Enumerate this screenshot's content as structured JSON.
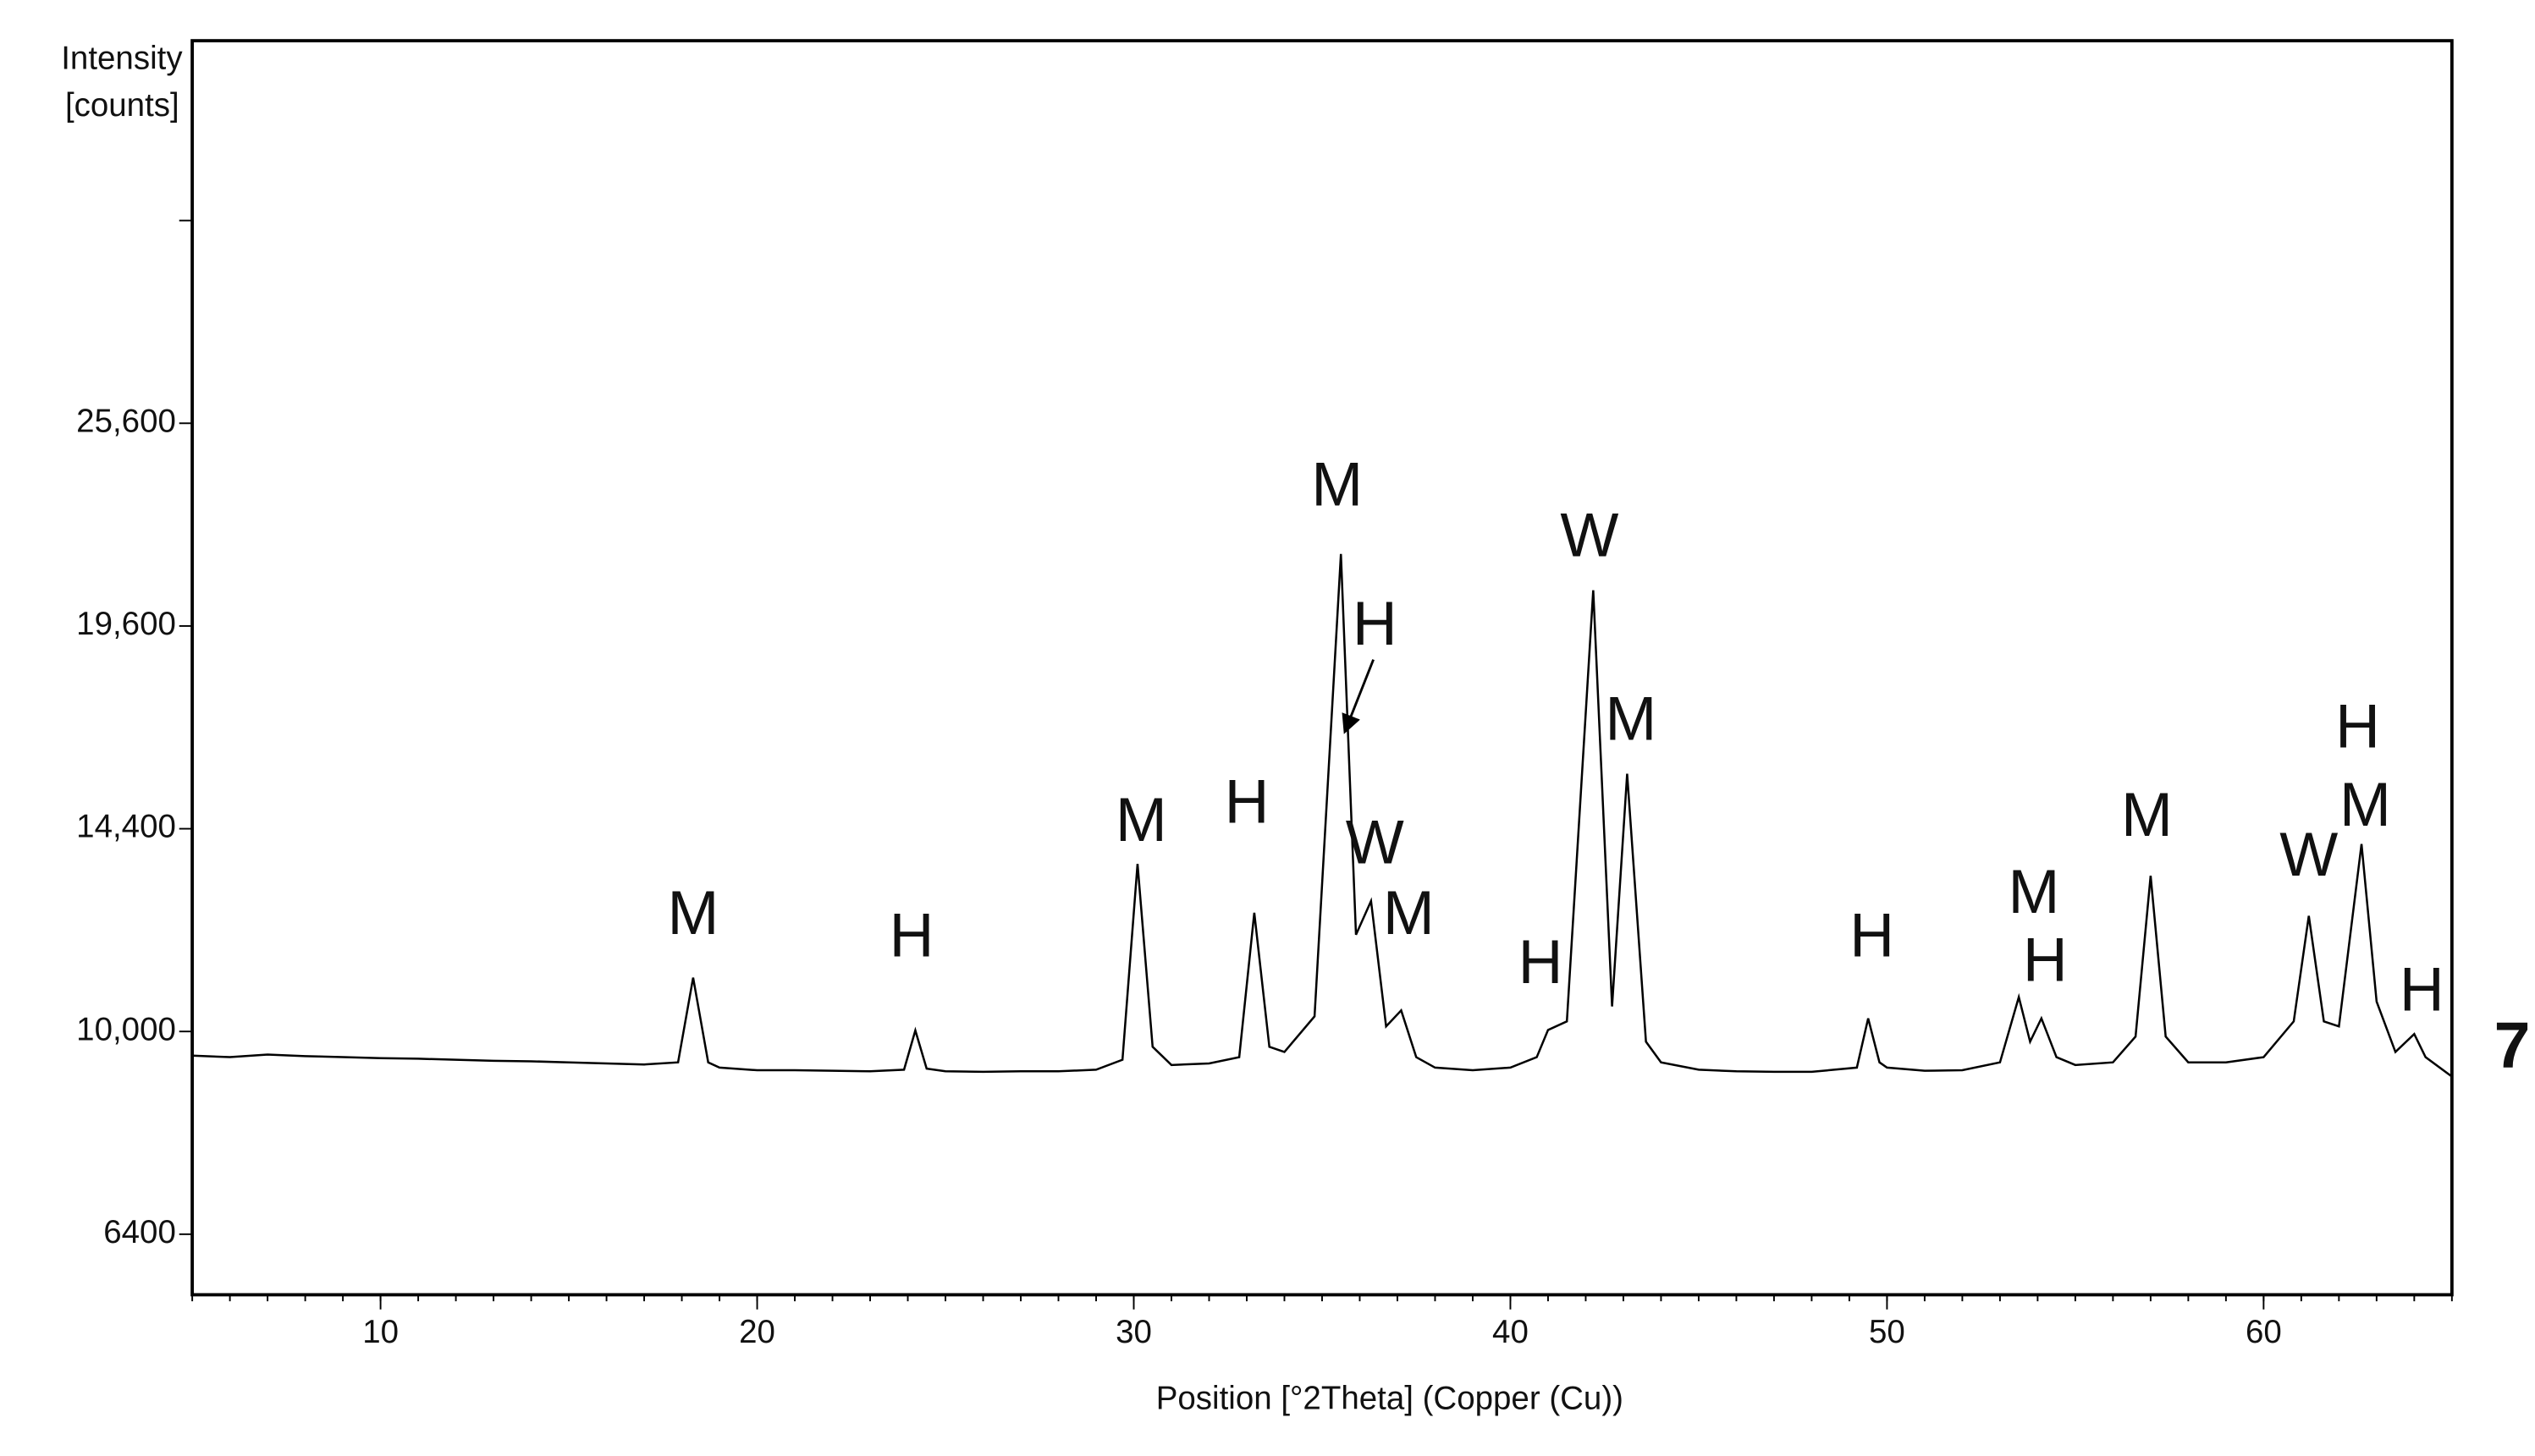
{
  "chart_data": {
    "type": "line",
    "y_label": [
      "Intensity",
      "[counts]"
    ],
    "x_label": "Position [°2Theta] (Copper (Cu))",
    "panel_label": "7",
    "y_scale": "sqrt",
    "xlim": [
      5,
      65
    ],
    "xticks": [
      10,
      20,
      30,
      40,
      50,
      60
    ],
    "x_minor_step": 1,
    "ylim": [
      5480,
      39100
    ],
    "yticks": [
      {
        "value": 6400,
        "label": "6400"
      },
      {
        "value": 10000,
        "label": "10,000"
      },
      {
        "value": 14400,
        "label": "14,400"
      },
      {
        "value": 19600,
        "label": "19,600"
      },
      {
        "value": 25600,
        "label": "25,600"
      },
      {
        "value": 32400,
        "label": null
      }
    ],
    "series": [
      {
        "color": "#000000",
        "x": [
          5,
          6,
          7,
          8,
          9,
          10,
          11,
          12,
          13,
          14,
          15,
          16,
          17,
          17.9,
          18.3,
          18.7,
          19,
          20,
          21,
          22,
          23,
          23.9,
          24.2,
          24.5,
          25,
          26,
          27,
          28,
          29,
          29.7,
          30.1,
          30.5,
          31,
          32,
          32.8,
          33.2,
          33.6,
          34,
          34.8,
          35.5,
          35.9,
          36.3,
          36.7,
          37.1,
          37.5,
          38,
          39,
          40,
          40.7,
          41,
          41.5,
          42.2,
          42.7,
          43.1,
          43.6,
          44,
          45,
          46,
          47,
          48,
          49.2,
          49.5,
          49.8,
          50,
          51,
          52,
          53,
          53.5,
          53.8,
          54.1,
          54.5,
          55,
          56,
          56.6,
          57,
          57.4,
          58,
          59,
          60,
          60.8,
          61.2,
          61.6,
          62,
          62.6,
          63,
          63.5,
          64,
          64.3,
          65
        ],
        "values": [
          9530,
          9500,
          9550,
          9520,
          9500,
          9480,
          9470,
          9450,
          9430,
          9420,
          9400,
          9380,
          9360,
          9400,
          11090,
          9400,
          9300,
          9250,
          9250,
          9240,
          9230,
          9260,
          10020,
          9280,
          9230,
          9220,
          9230,
          9230,
          9260,
          9450,
          13580,
          9700,
          9350,
          9380,
          9500,
          12480,
          9700,
          9600,
          10300,
          21640,
          12000,
          12740,
          10100,
          10420,
          9500,
          9300,
          9250,
          9300,
          9500,
          10030,
          10200,
          20600,
          10500,
          15730,
          9800,
          9400,
          9260,
          9230,
          9220,
          9220,
          9300,
          10260,
          9400,
          9300,
          9240,
          9250,
          9400,
          10690,
          9800,
          10260,
          9500,
          9350,
          9400,
          9900,
          13310,
          9900,
          9400,
          9400,
          9500,
          10200,
          12410,
          10200,
          10100,
          14040,
          10600,
          9600,
          9950,
          9500,
          9130
        ]
      }
    ],
    "annotations": [
      {
        "text": "M",
        "x": 18.3,
        "y": 12370
      },
      {
        "text": "H",
        "x": 24.1,
        "y": 11880
      },
      {
        "text": "M",
        "x": 30.2,
        "y": 14500
      },
      {
        "text": "H",
        "x": 33.0,
        "y": 14930
      },
      {
        "text": "M",
        "x": 35.4,
        "y": 23560
      },
      {
        "text": "H",
        "x": 36.4,
        "y": 19540
      },
      {
        "text": "W",
        "x": 36.4,
        "y": 13970
      },
      {
        "text": "M",
        "x": 37.3,
        "y": 12370
      },
      {
        "text": "H",
        "x": 40.8,
        "y": 11320
      },
      {
        "text": "W",
        "x": 42.1,
        "y": 22050
      },
      {
        "text": "M",
        "x": 43.2,
        "y": 17000
      },
      {
        "text": "H",
        "x": 49.6,
        "y": 11880
      },
      {
        "text": "M",
        "x": 53.9,
        "y": 12840
      },
      {
        "text": "H",
        "x": 54.2,
        "y": 11360
      },
      {
        "text": "M",
        "x": 56.9,
        "y": 14620
      },
      {
        "text": "W",
        "x": 61.2,
        "y": 13690
      },
      {
        "text": "H",
        "x": 62.5,
        "y": 16800
      },
      {
        "text": "M",
        "x": 62.7,
        "y": 14860
      },
      {
        "text": "H",
        "x": 64.2,
        "y": 10750
      }
    ]
  }
}
